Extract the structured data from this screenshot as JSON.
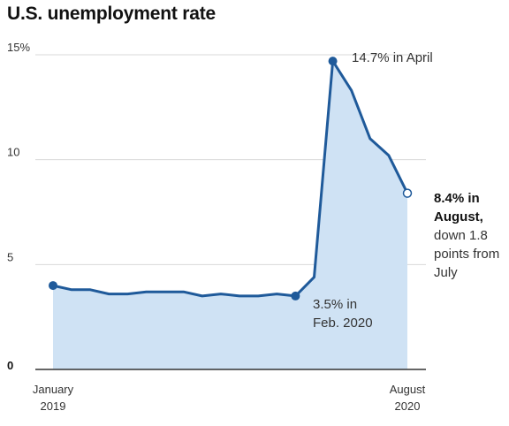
{
  "title": "U.S. unemployment rate",
  "colors": {
    "line": "#1f5a9a",
    "area": "#cfe2f4",
    "grid": "#d9d9d9",
    "axis": "#333333"
  },
  "y_ticks": [
    "0",
    "5",
    "10",
    "15%"
  ],
  "x_ticks": [
    {
      "line1": "January",
      "line2": "2019"
    },
    {
      "line1": "August",
      "line2": "2020"
    }
  ],
  "annotations": {
    "peak": "14.7% in April",
    "low_line1": "3.5% in",
    "low_line2": "Feb. 2020",
    "end_bold1": "8.4% in",
    "end_bold2": "August,",
    "end_line3": "down 1.8",
    "end_line4": "points from",
    "end_line5": "July"
  },
  "chart_data": {
    "type": "area",
    "title": "U.S. unemployment rate",
    "xlabel": "",
    "ylabel": "",
    "ylim": [
      0,
      15
    ],
    "grid": true,
    "x": [
      "2019-01",
      "2019-02",
      "2019-03",
      "2019-04",
      "2019-05",
      "2019-06",
      "2019-07",
      "2019-08",
      "2019-09",
      "2019-10",
      "2019-11",
      "2019-12",
      "2020-01",
      "2020-02",
      "2020-03",
      "2020-04",
      "2020-05",
      "2020-06",
      "2020-07",
      "2020-08"
    ],
    "values": [
      4.0,
      3.8,
      3.8,
      3.6,
      3.6,
      3.7,
      3.7,
      3.7,
      3.5,
      3.6,
      3.5,
      3.5,
      3.6,
      3.5,
      4.4,
      14.7,
      13.3,
      11.0,
      10.2,
      8.4
    ],
    "highlights": [
      {
        "x": "2019-01",
        "value": 4.0
      },
      {
        "x": "2020-02",
        "value": 3.5
      },
      {
        "x": "2020-04",
        "value": 14.7
      },
      {
        "x": "2020-08",
        "value": 8.4
      }
    ]
  }
}
